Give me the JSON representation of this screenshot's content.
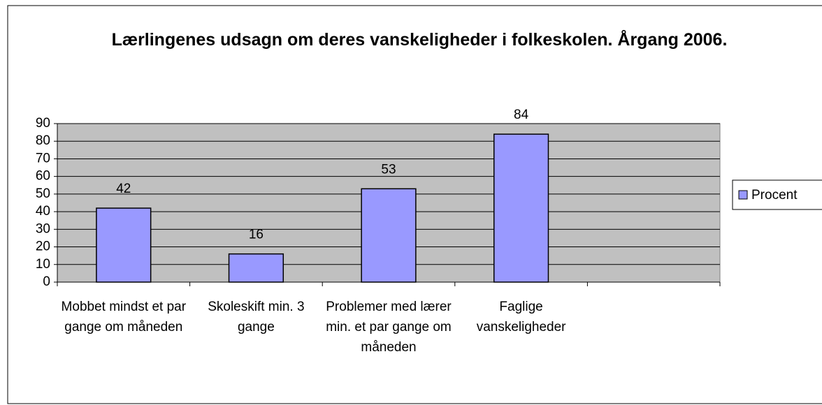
{
  "chart_data": {
    "type": "bar",
    "title": "Lærlingenes udsagn om deres vanskeligheder i folkeskolen. Årgang 2006.",
    "categories": [
      "Mobbet mindst et par gange om måneden",
      "Skoleskift min. 3 gange",
      "Problemer med lærer min. et par gange om måneden",
      "Faglige vanskeligheder",
      null
    ],
    "series": [
      {
        "name": "Procent",
        "color": "#9999ff",
        "values": [
          42,
          16,
          53,
          84,
          null
        ]
      }
    ],
    "ylim": [
      0,
      90
    ],
    "yticks": [
      0,
      10,
      20,
      30,
      40,
      50,
      60,
      70,
      80,
      90
    ],
    "grid": true,
    "legend": "right"
  }
}
